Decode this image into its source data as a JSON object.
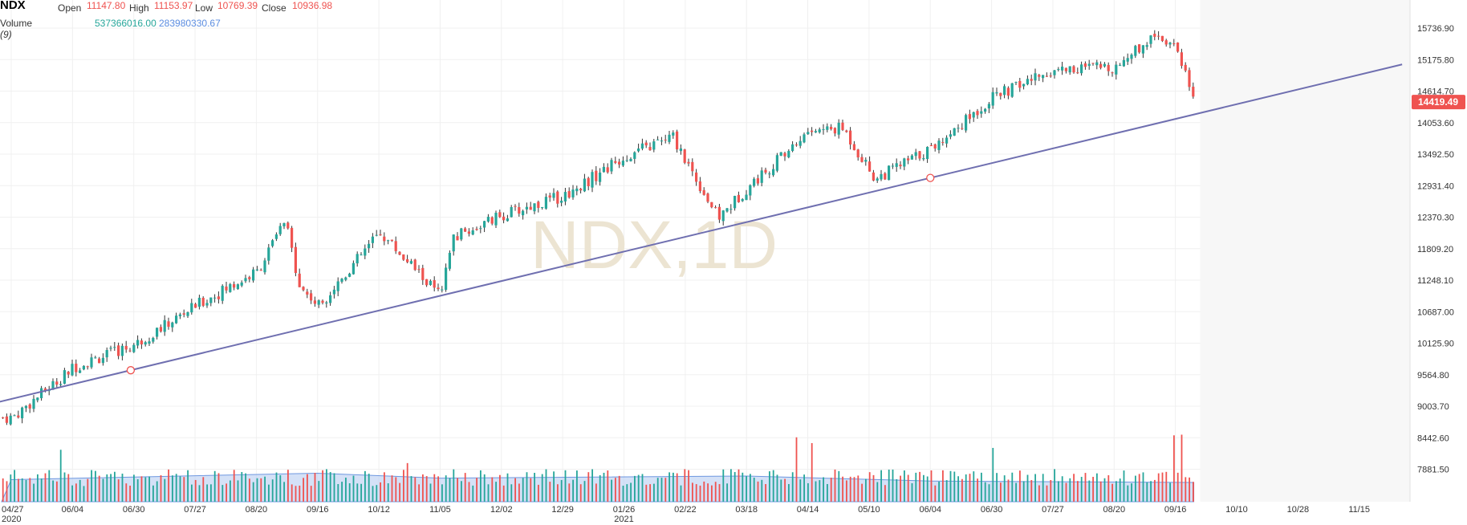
{
  "header": {
    "symbol": "NDX",
    "open_label": "Open",
    "open_value": "11147.80",
    "high_label": "High",
    "high_value": "11153.97",
    "low_label": "Low",
    "low_value": "10769.39",
    "close_label": "Close",
    "close_value": "10936.98",
    "volume_label": "Volume",
    "volume_period": "(9)",
    "volume_value": "537366016.00",
    "volume_ma_value": "283980330.67"
  },
  "watermark": "NDX,1D",
  "price_tag": "14419.49",
  "colors": {
    "up": "#26a69a",
    "down": "#ef5350",
    "wick": "#333333",
    "trendline": "#6f6fb0",
    "volume_ma_fill": "#b7cdf1",
    "volume_ma_line": "#6f98e0",
    "price_tag_bg": "#ef5350",
    "watermark": "#ece4d2",
    "grid": "#f0f0f0"
  },
  "chart_data": {
    "type": "candlestick",
    "title": "NDX",
    "y_axis": {
      "ticks": [
        "15736.90",
        "15175.80",
        "14614.70",
        "14053.60",
        "13492.50",
        "12931.40",
        "12370.30",
        "11809.20",
        "11248.10",
        "10687.00",
        "10125.90",
        "9564.80",
        "9003.70",
        "8442.60",
        "7881.50"
      ],
      "ylim": [
        7650,
        15900
      ],
      "position": "right"
    },
    "x_axis": {
      "ticks": [
        "04/27",
        "06/04",
        "06/30",
        "07/27",
        "08/20",
        "09/16",
        "10/12",
        "11/05",
        "12/02",
        "12/29",
        "01/26",
        "02/22",
        "03/18",
        "04/14",
        "05/10",
        "06/04",
        "06/30",
        "07/27",
        "08/20",
        "09/16",
        "10/10",
        "10/28",
        "11/15"
      ],
      "year_labels": [
        {
          "at": "04/27",
          "text": "2020"
        },
        {
          "at": "01/26",
          "text": "2021"
        }
      ]
    },
    "price_keypoints": [
      {
        "date": "04/27",
        "close": 8800
      },
      {
        "date": "06/04",
        "close": 9700
      },
      {
        "date": "06/30",
        "close": 10100
      },
      {
        "date": "07/27",
        "close": 10800
      },
      {
        "date": "08/20",
        "close": 11400
      },
      {
        "date": "09/01",
        "close": 12300
      },
      {
        "date": "09/08",
        "close": 11100
      },
      {
        "date": "09/16",
        "close": 10800
      },
      {
        "date": "10/12",
        "close": 12100
      },
      {
        "date": "11/05",
        "close": 10950
      },
      {
        "date": "11/10",
        "close": 12000
      },
      {
        "date": "12/02",
        "close": 12400
      },
      {
        "date": "12/29",
        "close": 12750
      },
      {
        "date": "01/26",
        "close": 13450
      },
      {
        "date": "02/16",
        "close": 13800
      },
      {
        "date": "03/05",
        "close": 12350
      },
      {
        "date": "03/18",
        "close": 12900
      },
      {
        "date": "04/14",
        "close": 13900
      },
      {
        "date": "04/29",
        "close": 13950
      },
      {
        "date": "05/12",
        "close": 13050
      },
      {
        "date": "06/04",
        "close": 13600
      },
      {
        "date": "06/30",
        "close": 14500
      },
      {
        "date": "07/27",
        "close": 15000
      },
      {
        "date": "08/20",
        "close": 15050
      },
      {
        "date": "09/07",
        "close": 15650
      },
      {
        "date": "09/16",
        "close": 15400
      },
      {
        "date": "09/30",
        "close": 14450
      }
    ],
    "volume_ma_levels": [
      {
        "date": "04/27",
        "value": 310000000
      },
      {
        "date": "09/16",
        "value": 400000000
      },
      {
        "date": "11/05",
        "value": 330000000
      },
      {
        "date": "03/18",
        "value": 360000000
      },
      {
        "date": "06/04",
        "value": 290000000
      },
      {
        "date": "09/30",
        "value": 270000000
      }
    ],
    "trendline": {
      "from": {
        "date": "04/27",
        "value": 9080
      },
      "to": {
        "date": "11/15",
        "value": 15090
      }
    },
    "trendline_anchors": [
      {
        "date": "06/25",
        "value": 9700
      },
      {
        "date": "06/04",
        "value": 13150
      }
    ],
    "last_close": 14419.49,
    "grid": true
  }
}
